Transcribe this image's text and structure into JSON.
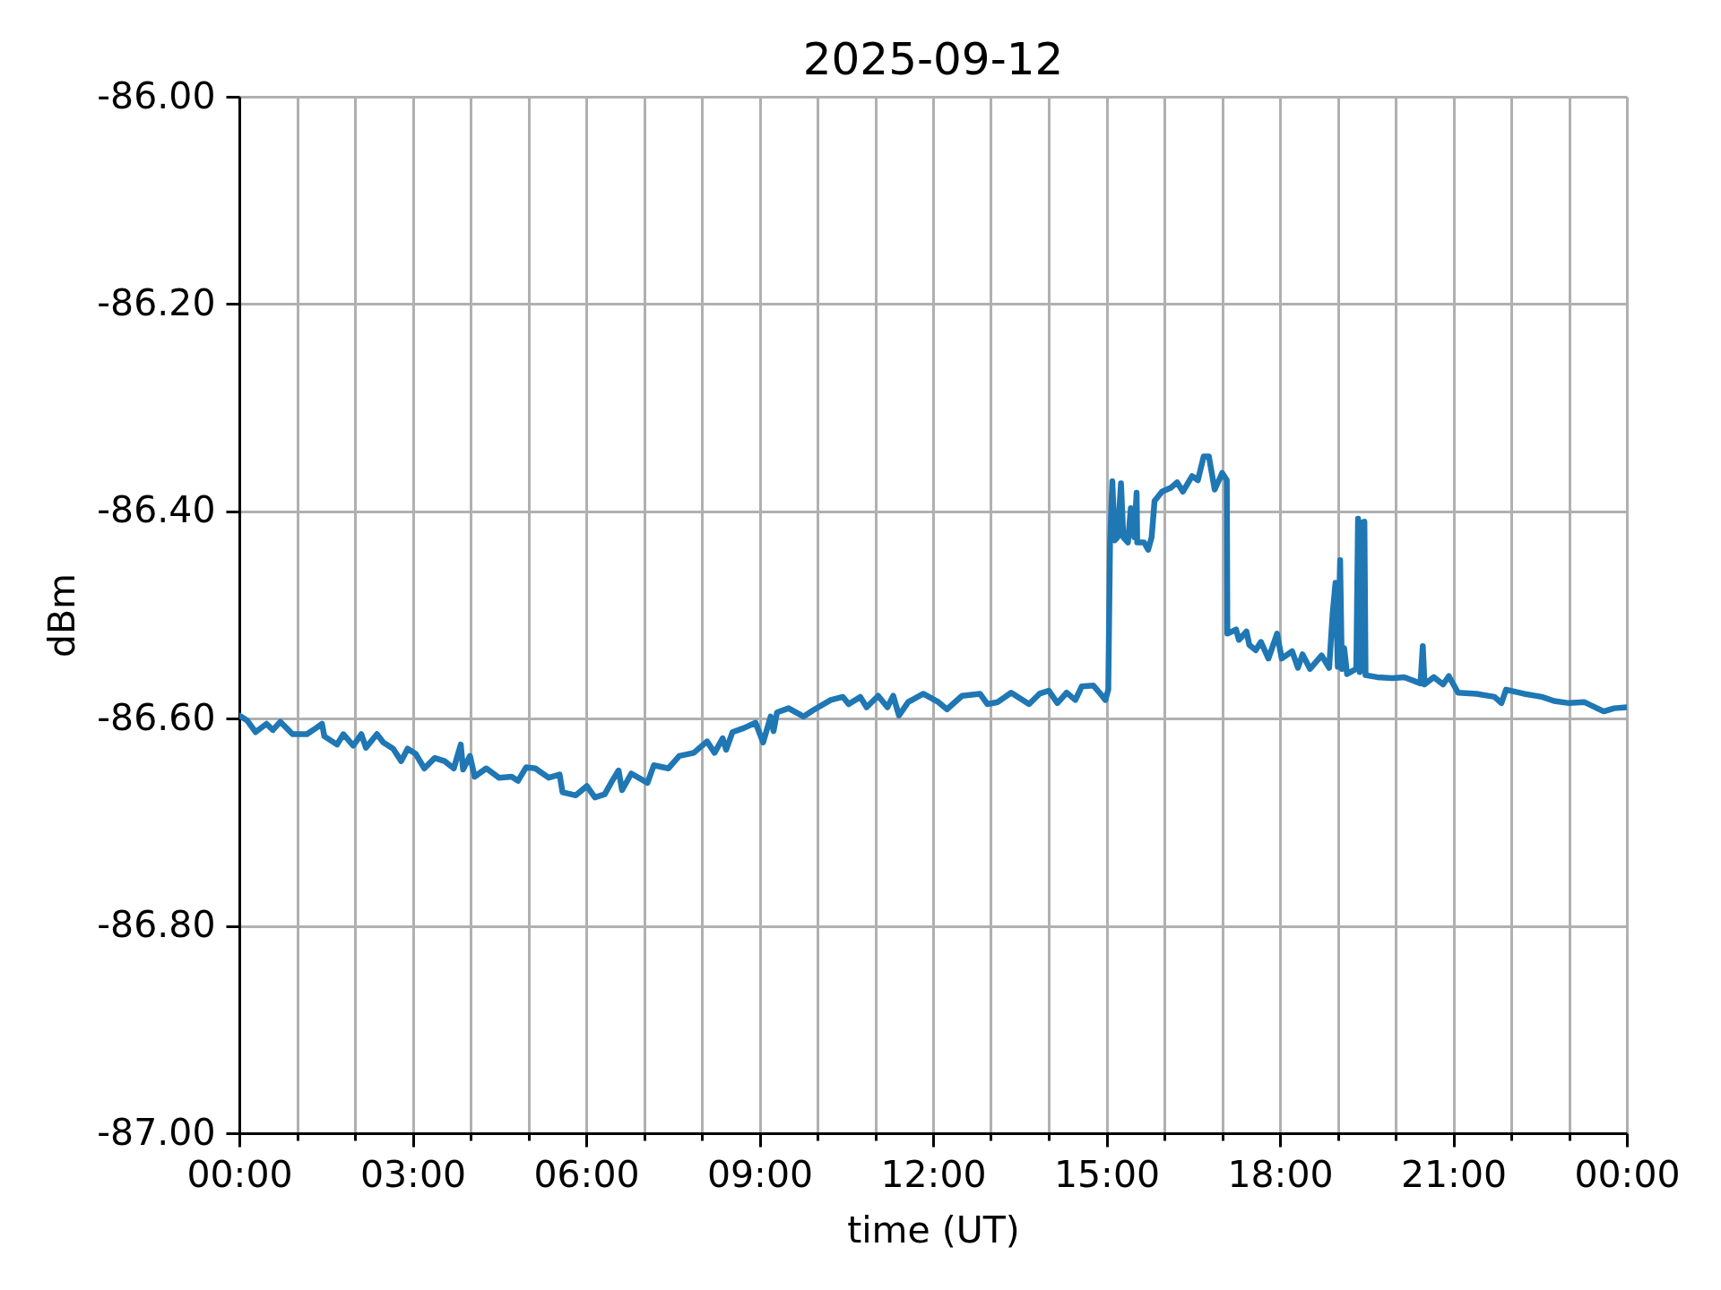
{
  "chart_data": {
    "type": "line",
    "title": "2025-09-12",
    "xlabel": "time (UT)",
    "ylabel": "dBm",
    "x": [
      0.0,
      0.14,
      0.28,
      0.47,
      0.58,
      0.71,
      0.92,
      1.17,
      1.33,
      1.43,
      1.47,
      1.69,
      1.8,
      1.97,
      2.11,
      2.19,
      2.38,
      2.49,
      2.66,
      2.8,
      2.91,
      3.05,
      3.2,
      3.38,
      3.55,
      3.71,
      3.83,
      3.87,
      3.99,
      4.07,
      4.27,
      4.49,
      4.71,
      4.82,
      4.96,
      5.12,
      5.35,
      5.54,
      5.59,
      5.82,
      6.01,
      6.15,
      6.32,
      6.45,
      6.56,
      6.62,
      6.78,
      7.06,
      7.17,
      7.42,
      7.61,
      7.86,
      8.09,
      8.22,
      8.36,
      8.42,
      8.53,
      8.73,
      8.93,
      9.06,
      9.19,
      9.24,
      9.3,
      9.5,
      9.76,
      9.92,
      10.23,
      10.44,
      10.54,
      10.74,
      10.85,
      11.05,
      11.21,
      11.31,
      11.41,
      11.57,
      11.83,
      12.09,
      12.24,
      12.5,
      12.81,
      12.94,
      13.12,
      13.35,
      13.66,
      13.84,
      14.0,
      14.15,
      14.31,
      14.46,
      14.57,
      14.77,
      14.88,
      14.98,
      15.03,
      15.06,
      15.1,
      15.14,
      15.19,
      15.25,
      15.29,
      15.37,
      15.42,
      15.48,
      15.52,
      15.53,
      15.65,
      15.72,
      15.78,
      15.83,
      15.96,
      16.12,
      16.22,
      16.32,
      16.48,
      16.58,
      16.68,
      16.77,
      16.87,
      17.0,
      17.08,
      17.09,
      17.24,
      17.29,
      17.42,
      17.47,
      17.58,
      17.67,
      17.8,
      17.95,
      18.03,
      18.21,
      18.31,
      18.39,
      18.52,
      18.72,
      18.85,
      18.91,
      18.96,
      19.0,
      19.04,
      19.07,
      19.11,
      19.16,
      19.32,
      19.35,
      19.38,
      19.41,
      19.46,
      19.48,
      19.68,
      19.94,
      20.15,
      20.43,
      20.47,
      20.5,
      20.66,
      20.82,
      20.92,
      21.08,
      21.4,
      21.71,
      21.83,
      21.91,
      22.22,
      22.53,
      22.74,
      23.0,
      23.26,
      23.6,
      23.78,
      24.0
    ],
    "series": [
      {
        "color": "#1f77b4",
        "values": [
          -86.597,
          -86.602,
          -86.613,
          -86.605,
          -86.611,
          -86.603,
          -86.615,
          -86.615,
          -86.609,
          -86.605,
          -86.617,
          -86.625,
          -86.615,
          -86.626,
          -86.615,
          -86.628,
          -86.615,
          -86.623,
          -86.629,
          -86.641,
          -86.629,
          -86.634,
          -86.648,
          -86.638,
          -86.641,
          -86.648,
          -86.625,
          -86.649,
          -86.636,
          -86.656,
          -86.648,
          -86.657,
          -86.656,
          -86.66,
          -86.647,
          -86.648,
          -86.657,
          -86.654,
          -86.671,
          -86.674,
          -86.665,
          -86.676,
          -86.673,
          -86.66,
          -86.65,
          -86.669,
          -86.653,
          -86.662,
          -86.645,
          -86.648,
          -86.636,
          -86.633,
          -86.622,
          -86.633,
          -86.619,
          -86.63,
          -86.613,
          -86.609,
          -86.604,
          -86.623,
          -86.598,
          -86.612,
          -86.594,
          -86.59,
          -86.598,
          -86.592,
          -86.582,
          -86.579,
          -86.586,
          -86.579,
          -86.589,
          -86.578,
          -86.589,
          -86.578,
          -86.597,
          -86.584,
          -86.576,
          -86.584,
          -86.591,
          -86.578,
          -86.576,
          -86.586,
          -86.584,
          -86.575,
          -86.586,
          -86.576,
          -86.573,
          -86.585,
          -86.575,
          -86.582,
          -86.569,
          -86.568,
          -86.575,
          -86.582,
          -86.572,
          -86.431,
          -86.371,
          -86.428,
          -86.425,
          -86.373,
          -86.425,
          -86.43,
          -86.397,
          -86.425,
          -86.382,
          -86.43,
          -86.43,
          -86.437,
          -86.425,
          -86.39,
          -86.381,
          -86.377,
          -86.372,
          -86.381,
          -86.366,
          -86.37,
          -86.347,
          -86.347,
          -86.379,
          -86.363,
          -86.37,
          -86.518,
          -86.514,
          -86.524,
          -86.516,
          -86.529,
          -86.534,
          -86.526,
          -86.542,
          -86.518,
          -86.542,
          -86.535,
          -86.551,
          -86.538,
          -86.552,
          -86.539,
          -86.551,
          -86.499,
          -86.469,
          -86.55,
          -86.447,
          -86.552,
          -86.532,
          -86.557,
          -86.552,
          -86.407,
          -86.555,
          -86.411,
          -86.41,
          -86.558,
          -86.56,
          -86.561,
          -86.56,
          -86.566,
          -86.53,
          -86.567,
          -86.56,
          -86.567,
          -86.559,
          -86.575,
          -86.576,
          -86.579,
          -86.585,
          -86.572,
          -86.576,
          -86.579,
          -86.583,
          -86.585,
          -86.584,
          -86.593,
          -86.59,
          -86.589
        ]
      }
    ],
    "xlim": [
      0,
      24
    ],
    "xticks": [
      {
        "value": 0,
        "label": "00:00"
      },
      {
        "value": 1,
        "label": null
      },
      {
        "value": 2,
        "label": null
      },
      {
        "value": 3,
        "label": "03:00"
      },
      {
        "value": 4,
        "label": null
      },
      {
        "value": 5,
        "label": null
      },
      {
        "value": 6,
        "label": "06:00"
      },
      {
        "value": 7,
        "label": null
      },
      {
        "value": 8,
        "label": null
      },
      {
        "value": 9,
        "label": "09:00"
      },
      {
        "value": 10,
        "label": null
      },
      {
        "value": 11,
        "label": null
      },
      {
        "value": 12,
        "label": "12:00"
      },
      {
        "value": 13,
        "label": null
      },
      {
        "value": 14,
        "label": null
      },
      {
        "value": 15,
        "label": "15:00"
      },
      {
        "value": 16,
        "label": null
      },
      {
        "value": 17,
        "label": null
      },
      {
        "value": 18,
        "label": "18:00"
      },
      {
        "value": 19,
        "label": null
      },
      {
        "value": 20,
        "label": null
      },
      {
        "value": 21,
        "label": "21:00"
      },
      {
        "value": 22,
        "label": null
      },
      {
        "value": 23,
        "label": null
      },
      {
        "value": 24,
        "label": "00:00"
      }
    ],
    "ylim": [
      -87,
      -86
    ],
    "yticks": [
      {
        "value": -87,
        "label": "-87.00"
      },
      {
        "value": -86.8,
        "label": "-86.80"
      },
      {
        "value": -86.6,
        "label": "-86.60"
      },
      {
        "value": -86.4,
        "label": "-86.40"
      },
      {
        "value": -86.2,
        "label": "-86.20"
      },
      {
        "value": -86,
        "label": "-86.00"
      }
    ],
    "grid": true
  }
}
